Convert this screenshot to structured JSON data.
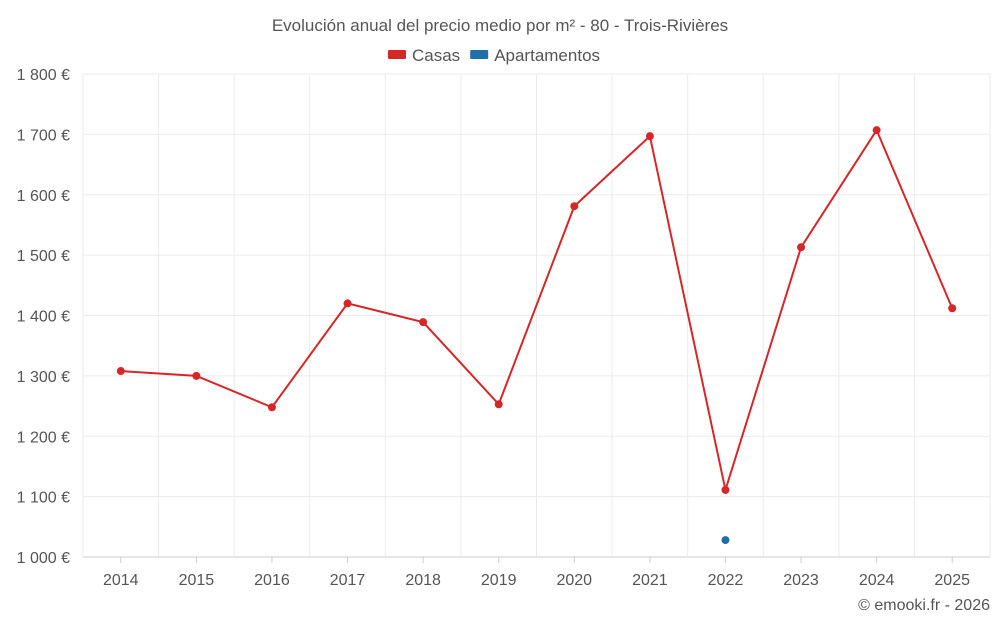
{
  "chart_data": {
    "type": "line",
    "title": "Evolución anual del precio medio por m² - 80 - Trois-Rivières",
    "xlabel": "",
    "ylabel": "",
    "categories": [
      "2014",
      "2015",
      "2016",
      "2017",
      "2018",
      "2019",
      "2020",
      "2021",
      "2022",
      "2023",
      "2024",
      "2025"
    ],
    "ylim": [
      1000,
      1800
    ],
    "yticks": [
      1000,
      1100,
      1200,
      1300,
      1400,
      1500,
      1600,
      1700,
      1800
    ],
    "ytick_labels": [
      "1 000 €",
      "1 100 €",
      "1 200 €",
      "1 300 €",
      "1 400 €",
      "1 500 €",
      "1 600 €",
      "1 700 €",
      "1 800 €"
    ],
    "grid": true,
    "legend_position": "top-center",
    "series": [
      {
        "name": "Casas",
        "color": "#d62728",
        "values": [
          1308,
          1300,
          1248,
          1420,
          1389,
          1253,
          1581,
          1697,
          1111,
          1513,
          1707,
          1412
        ]
      },
      {
        "name": "Apartamentos",
        "color": "#1f6fa8",
        "values": [
          null,
          null,
          null,
          null,
          null,
          null,
          null,
          null,
          1028,
          null,
          null,
          null
        ]
      }
    ]
  },
  "credit": "© emooki.fr - 2026"
}
